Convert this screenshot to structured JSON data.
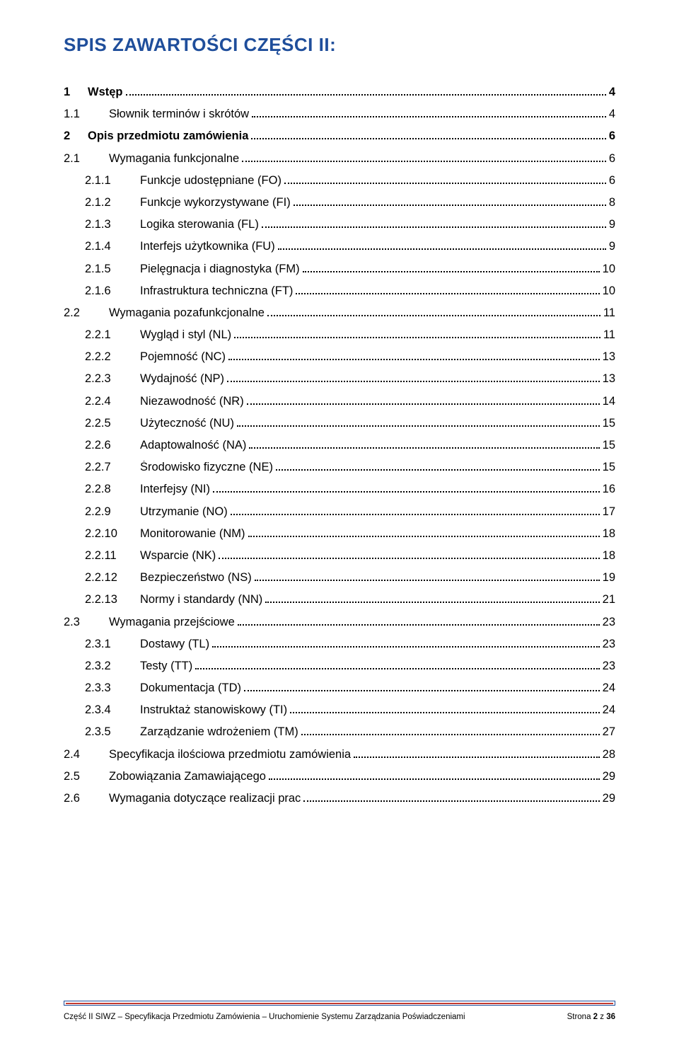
{
  "title": "SPIS ZAWARTOŚCI CZĘŚCI II:",
  "colors": {
    "title": "#1f4e9b",
    "rule_border": "#1f4e9b",
    "rule_accent": "#c33a2f",
    "text": "#000000",
    "background": "#ffffff"
  },
  "toc": [
    {
      "level": 1,
      "num": "1",
      "label": "Wstęp",
      "page": "4"
    },
    {
      "level": 2,
      "num": "1.1",
      "label": "Słownik terminów i skrótów",
      "page": "4"
    },
    {
      "level": 1,
      "num": "2",
      "label": "Opis przedmiotu zamówienia",
      "page": "6"
    },
    {
      "level": 2,
      "num": "2.1",
      "label": "Wymagania funkcjonalne",
      "page": "6"
    },
    {
      "level": 3,
      "num": "2.1.1",
      "label": "Funkcje udostępniane (FO)",
      "page": "6"
    },
    {
      "level": 3,
      "num": "2.1.2",
      "label": "Funkcje wykorzystywane (FI)",
      "page": "8"
    },
    {
      "level": 3,
      "num": "2.1.3",
      "label": "Logika sterowania (FL)",
      "page": "9"
    },
    {
      "level": 3,
      "num": "2.1.4",
      "label": "Interfejs użytkownika (FU)",
      "page": "9"
    },
    {
      "level": 3,
      "num": "2.1.5",
      "label": "Pielęgnacja i diagnostyka (FM)",
      "page": "10"
    },
    {
      "level": 3,
      "num": "2.1.6",
      "label": "Infrastruktura techniczna (FT)",
      "page": "10"
    },
    {
      "level": 2,
      "num": "2.2",
      "label": "Wymagania pozafunkcjonalne",
      "page": "11"
    },
    {
      "level": 3,
      "num": "2.2.1",
      "label": "Wygląd i styl (NL)",
      "page": "11"
    },
    {
      "level": 3,
      "num": "2.2.2",
      "label": "Pojemność (NC)",
      "page": "13"
    },
    {
      "level": 3,
      "num": "2.2.3",
      "label": "Wydajność (NP)",
      "page": "13"
    },
    {
      "level": 3,
      "num": "2.2.4",
      "label": "Niezawodność (NR)",
      "page": "14"
    },
    {
      "level": 3,
      "num": "2.2.5",
      "label": "Użyteczność (NU)",
      "page": "15"
    },
    {
      "level": 3,
      "num": "2.2.6",
      "label": "Adaptowalność (NA)",
      "page": "15"
    },
    {
      "level": 3,
      "num": "2.2.7",
      "label": "Środowisko fizyczne (NE)",
      "page": "15"
    },
    {
      "level": 3,
      "num": "2.2.8",
      "label": "Interfejsy (NI)",
      "page": "16"
    },
    {
      "level": 3,
      "num": "2.2.9",
      "label": "Utrzymanie (NO)",
      "page": "17"
    },
    {
      "level": 3,
      "num": "2.2.10",
      "label": "Monitorowanie (NM)",
      "page": "18"
    },
    {
      "level": 3,
      "num": "2.2.11",
      "label": "Wsparcie (NK)",
      "page": "18"
    },
    {
      "level": 3,
      "num": "2.2.12",
      "label": "Bezpieczeństwo (NS)",
      "page": "19"
    },
    {
      "level": 3,
      "num": "2.2.13",
      "label": "Normy i standardy (NN)",
      "page": "21"
    },
    {
      "level": 2,
      "num": "2.3",
      "label": "Wymagania przejściowe",
      "page": "23"
    },
    {
      "level": 3,
      "num": "2.3.1",
      "label": "Dostawy (TL)",
      "page": "23"
    },
    {
      "level": 3,
      "num": "2.3.2",
      "label": "Testy (TT)",
      "page": "23"
    },
    {
      "level": 3,
      "num": "2.3.3",
      "label": "Dokumentacja (TD)",
      "page": "24"
    },
    {
      "level": 3,
      "num": "2.3.4",
      "label": "Instruktaż stanowiskowy (TI)",
      "page": "24"
    },
    {
      "level": 3,
      "num": "2.3.5",
      "label": "Zarządzanie wdrożeniem (TM)",
      "page": "27"
    },
    {
      "level": 2,
      "num": "2.4",
      "label": "Specyfikacja ilościowa przedmiotu zamówienia",
      "page": "28"
    },
    {
      "level": 2,
      "num": "2.5",
      "label": "Zobowiązania Zamawiającego",
      "page": "29"
    },
    {
      "level": 2,
      "num": "2.6",
      "label": "Wymagania dotyczące realizacji prac",
      "page": "29"
    }
  ],
  "footer": {
    "left": "Część II SIWZ – Specyfikacja Przedmiotu Zamówienia – Uruchomienie Systemu Zarządzania Poświadczeniami",
    "right_prefix": "Strona ",
    "right_current": "2",
    "right_sep": " z ",
    "right_total": "36"
  }
}
